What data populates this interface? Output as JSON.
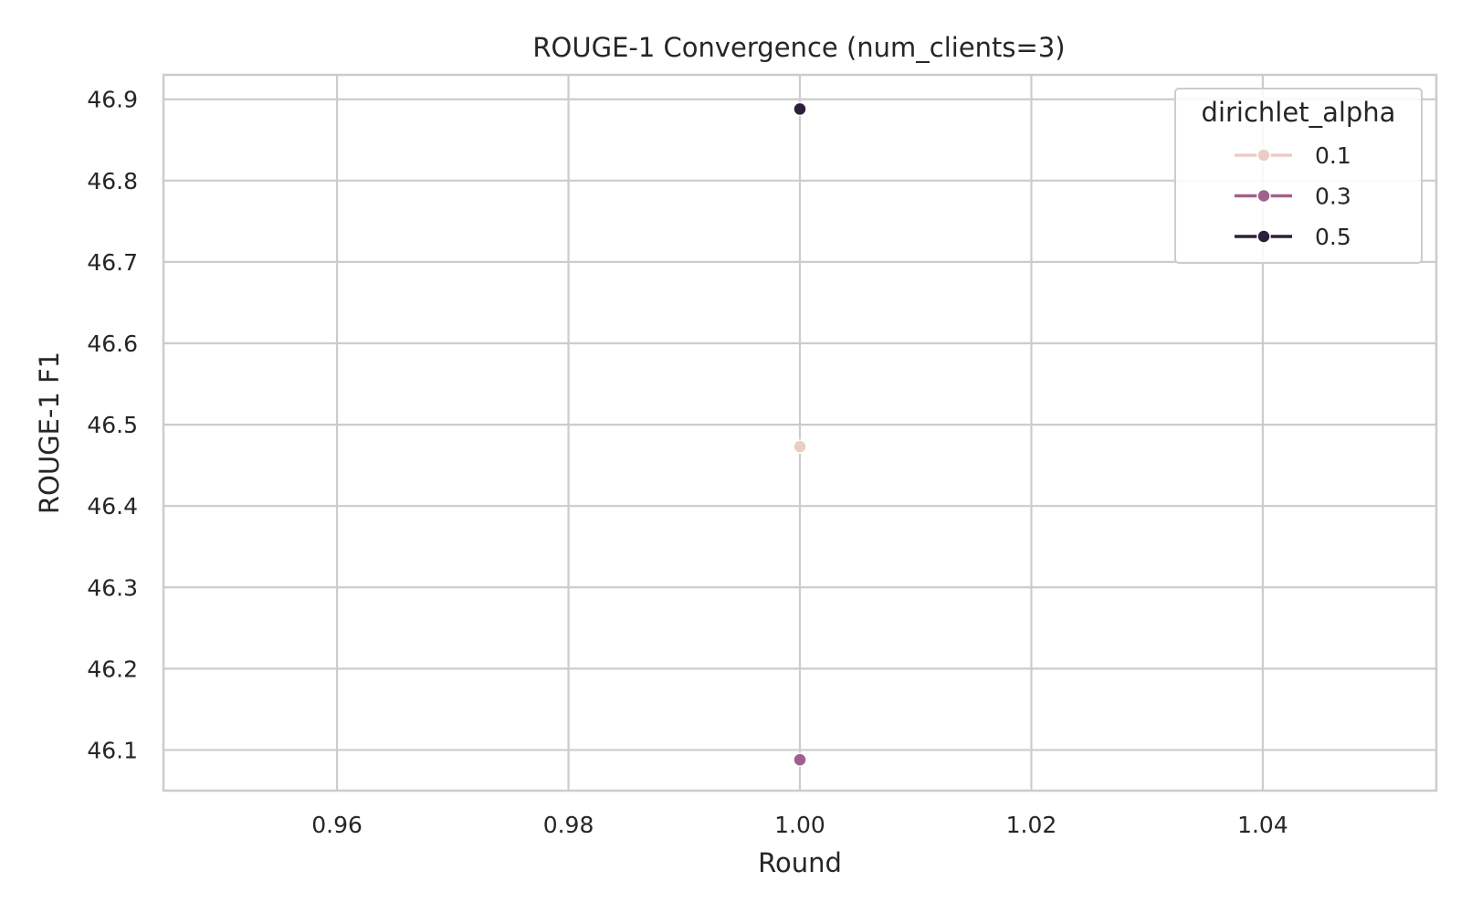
{
  "chart_data": {
    "type": "line",
    "title": "ROUGE-1 Convergence (num_clients=3)",
    "xlabel": "Round",
    "ylabel": "ROUGE-1 F1",
    "xlim": [
      0.945,
      1.055
    ],
    "ylim": [
      46.05,
      46.93
    ],
    "xticks": [
      0.96,
      0.98,
      1.0,
      1.02,
      1.04
    ],
    "xtick_labels": [
      "0.96",
      "0.98",
      "1.00",
      "1.02",
      "1.04"
    ],
    "yticks": [
      46.1,
      46.2,
      46.3,
      46.4,
      46.5,
      46.6,
      46.7,
      46.8,
      46.9
    ],
    "ytick_labels": [
      "46.1",
      "46.2",
      "46.3",
      "46.4",
      "46.5",
      "46.6",
      "46.7",
      "46.8",
      "46.9"
    ],
    "grid": true,
    "legend": {
      "title": "dirichlet_alpha",
      "placement": "top-right"
    },
    "series": [
      {
        "name": "0.1",
        "color": "#ebcdc5",
        "x": [
          1.0
        ],
        "y": [
          46.473
        ]
      },
      {
        "name": "0.3",
        "color": "#a0628c",
        "x": [
          1.0
        ],
        "y": [
          46.088
        ]
      },
      {
        "name": "0.5",
        "color": "#2d1e3e",
        "x": [
          1.0
        ],
        "y": [
          46.888
        ]
      }
    ]
  }
}
